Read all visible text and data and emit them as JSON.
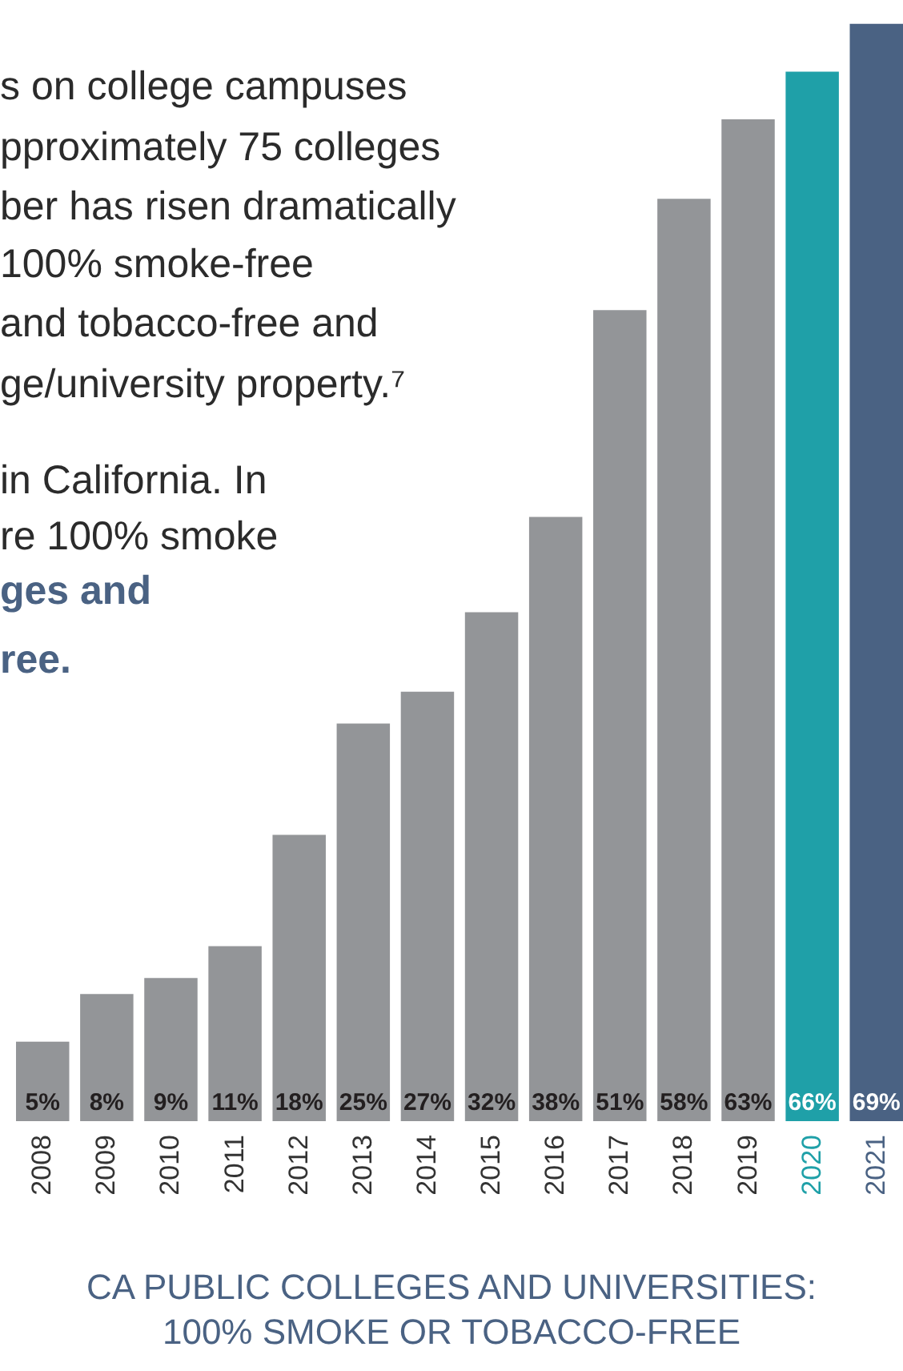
{
  "chart_data": {
    "type": "bar",
    "title": "CA PUBLIC COLLEGES AND UNIVERSITIES:\n100% SMOKE OR TOBACCO-FREE",
    "categories": [
      "2008",
      "2009",
      "2010",
      "2011",
      "2012",
      "2013",
      "2014",
      "2015",
      "2016",
      "2017",
      "2018",
      "2019",
      "2020",
      "2021"
    ],
    "values": [
      5,
      8,
      9,
      11,
      18,
      25,
      27,
      32,
      38,
      51,
      58,
      63,
      66,
      69
    ],
    "colors": [
      "#939598",
      "#939598",
      "#939598",
      "#939598",
      "#939598",
      "#939598",
      "#939598",
      "#939598",
      "#939598",
      "#939598",
      "#939598",
      "#939598",
      "#1fa0a8",
      "#4a6283"
    ],
    "value_labels": [
      "5%",
      "8%",
      "9%",
      "11%",
      "18%",
      "25%",
      "27%",
      "32%",
      "38%",
      "51%",
      "58%",
      "63%",
      "66%",
      "69%"
    ],
    "ylim": [
      0,
      70
    ],
    "annotations": [
      "s on college campuses",
      "pproximately 75 colleges",
      "ber has risen dramatically",
      "100% smoke-free",
      "and tobacco-free and",
      "ge/university property.⁷",
      "in California.  In",
      "re 100% smoke",
      "ges and",
      "ree."
    ]
  }
}
